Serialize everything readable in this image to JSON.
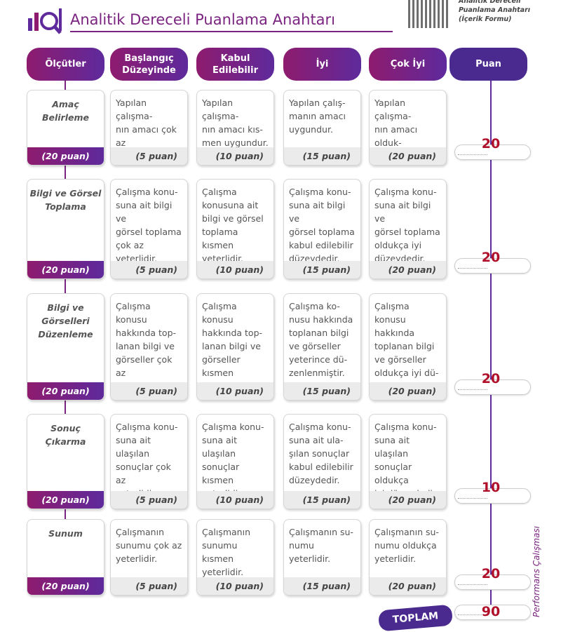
{
  "header": {
    "title": "Analitik Dereceli Puanlama Anahtarı",
    "form_note": "Analitik Dereceli\nPuanlama Anahtarı\n(İçerik Formu)"
  },
  "columns": [
    "Ölçütler",
    "Başlangıç\nDüzeyinde",
    "Kabul\nEdilebilir",
    "İyi",
    "Çok İyi",
    "Puan"
  ],
  "rows": [
    {
      "criterion": "Amaç\nBelirleme",
      "criterion_points": "(20 puan)",
      "cells": [
        {
          "text": "Yapılan çalışma-\nnın amacı çok az\nuygundur.",
          "points": "(5 puan)"
        },
        {
          "text": "Yapılan çalışma-\nnın amacı kıs-\nmen uygundur.",
          "points": "(10 puan)"
        },
        {
          "text": "Yapılan çalış-\nmanın amacı\nuygundur.",
          "points": "(15 puan)"
        },
        {
          "text": "Yapılan çalışma-\nnın amacı olduk-\nça uygundur.",
          "points": "(20 puan)"
        }
      ],
      "score": 20
    },
    {
      "criterion": "Bilgi ve Görsel\nToplama",
      "criterion_points": "(20 puan)",
      "cells": [
        {
          "text": "Çalışma konu-\nsuna ait bilgi ve\ngörsel toplama\nçok az yeterlidir.",
          "points": "(5 puan)"
        },
        {
          "text": "Çalışma\nkonusuna ait\nbilgi ve görsel\ntoplama kısmen\nyeterlidir.",
          "points": "(10 puan)"
        },
        {
          "text": "Çalışma konu-\nsuna ait bilgi ve\ngörsel toplama\nkabul edilebilir\ndüzeydedir.",
          "points": "(15 puan)"
        },
        {
          "text": "Çalışma konu-\nsuna ait bilgi ve\ngörsel toplama\noldukça iyi\ndüzeydedir.",
          "points": "(20 puan)"
        }
      ],
      "score": 20
    },
    {
      "criterion": "Bilgi ve\nGörselleri\nDüzenleme",
      "criterion_points": "(20 puan)",
      "cells": [
        {
          "text": "Çalışma konusu\nhakkında top-\nlanan bilgi ve\ngörseller çok az\ndüzenlenmiştir.",
          "points": "(5 puan)"
        },
        {
          "text": "Çalışma konusu\nhakkında top-\nlanan bilgi ve\ngörseller kısmen\ndüzenlenmiştir.",
          "points": "(10 puan)"
        },
        {
          "text": "Çalışma ko-\nnusu hakkında\ntoplanan bilgi\nve görseller\nyeterince dü-\nzenlenmiştir.",
          "points": "(15 puan)"
        },
        {
          "text": "Çalışma konusu\nhakkında\ntoplanan bilgi\nve görseller\noldukça iyi dü-\nzenlenmiştir.",
          "points": "(20 puan)"
        }
      ],
      "score": 20
    },
    {
      "criterion": "Sonuç\nÇıkarma",
      "criterion_points": "(20 puan)",
      "cells": [
        {
          "text": "Çalışma konu-\nsuna ait ulaşılan\nsonuçlar çok az\nyeterlidir.",
          "points": "(5 puan)"
        },
        {
          "text": "Çalışma konu-\nsuna ait ulaşılan\nsonuçlar kısmen\nyeterlidir.",
          "points": "(10 puan)"
        },
        {
          "text": "Çalışma konu-\nsuna ait ula-\nşılan sonuçlar\nkabul edilebilir\ndüzeydedir.",
          "points": "(15 puan)"
        },
        {
          "text": "Çalışma konu-\nsuna ait ulaşılan\nsonuçlar oldukça\niyi düzeydedir.",
          "points": "(20 puan)"
        }
      ],
      "score": 10
    },
    {
      "criterion": "Sunum",
      "criterion_points": "(20 puan)",
      "cells": [
        {
          "text": "Çalışmanın\nsunumu çok az\nyeterlidir.",
          "points": "(5 puan)"
        },
        {
          "text": "Çalışmanın\nsunumu kısmen\nyeterlidir.",
          "points": "(10 puan)"
        },
        {
          "text": "Çalışmanın su-\nnumu yeterlidir.",
          "points": "(15 puan)"
        },
        {
          "text": "Çalışmanın su-\nnumu oldukça\nyeterlidir.",
          "points": "(20 puan)"
        }
      ],
      "score": 20
    }
  ],
  "total": {
    "label": "TOPLAM",
    "value": 90
  },
  "side_label": "Performans Çalışması"
}
